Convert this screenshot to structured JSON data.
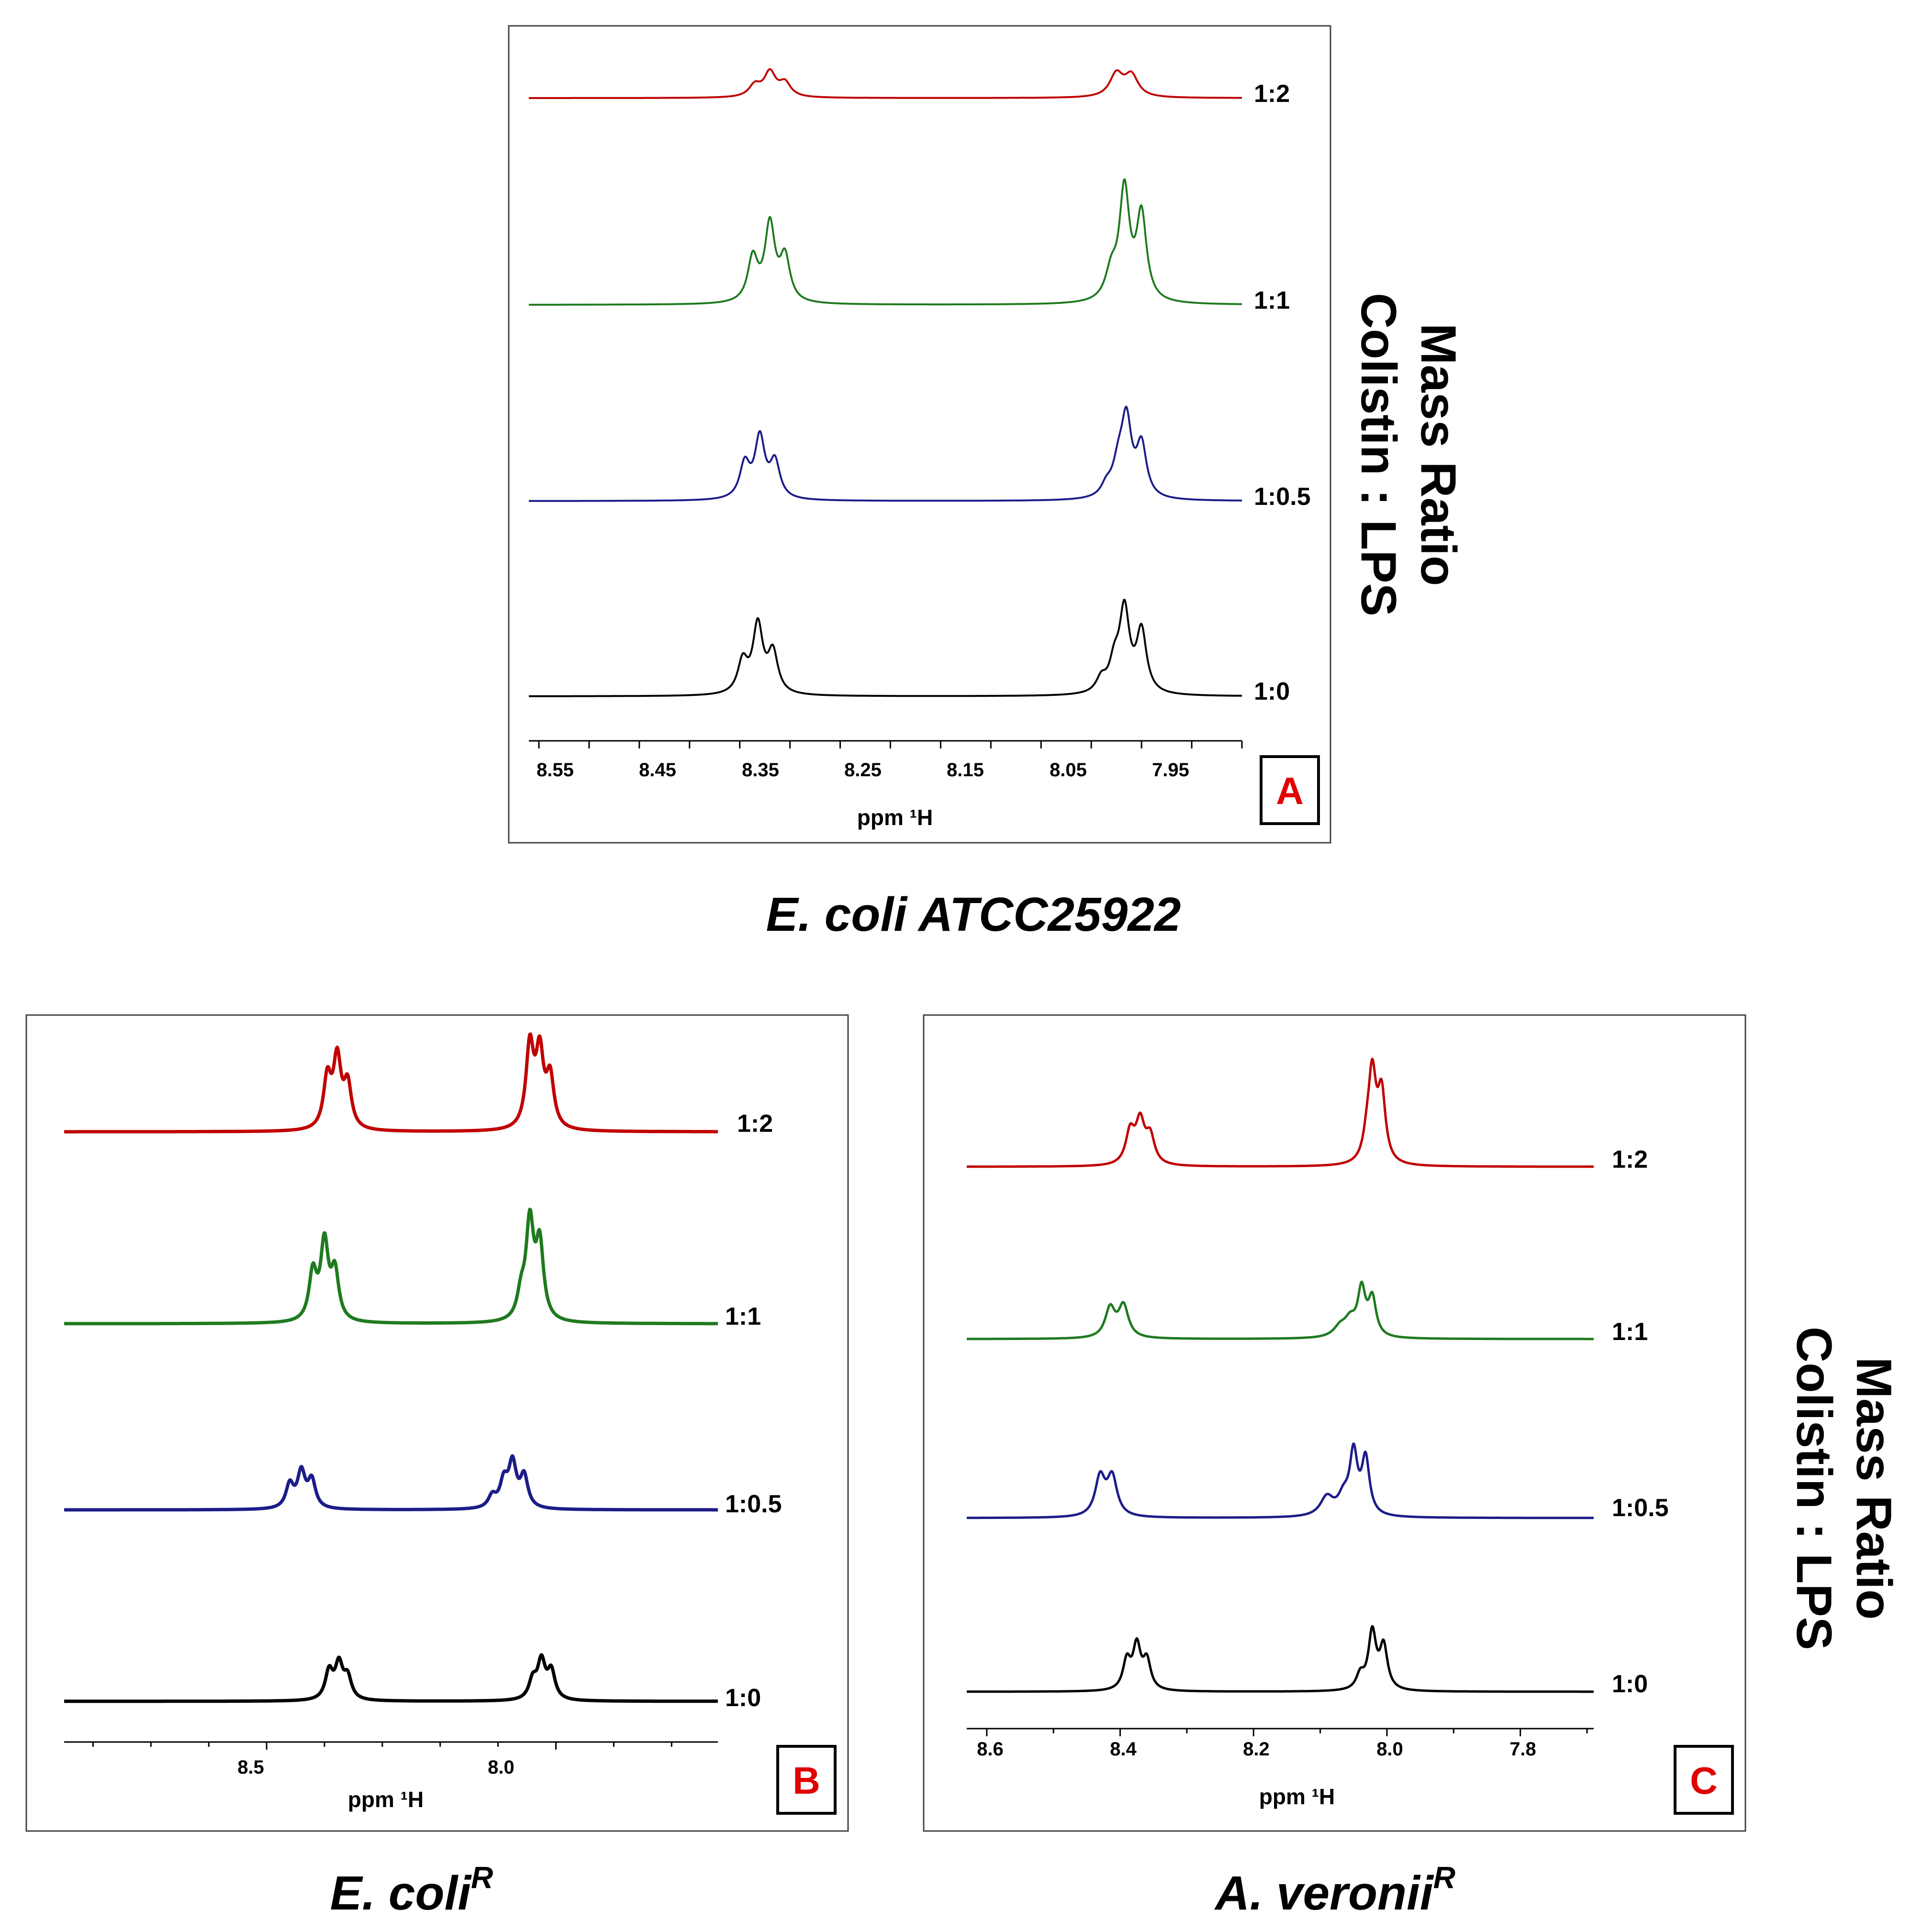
{
  "side_label": {
    "line1": "Mass Ratio",
    "line2": "Colistin : LPS"
  },
  "colors": {
    "1:2": "#c00000",
    "1:1": "#1f7a1f",
    "1:0.5": "#1c1c8a",
    "1:0": "#000000",
    "panel_letter": "#e00000"
  },
  "chart_data": [
    {
      "type": "line",
      "panel": "A",
      "caption": "E. coli ATCC25922",
      "xlabel": "ppm ¹H",
      "xlim": [
        8.61,
        7.9
      ],
      "xticks": [
        "8.55",
        "8.45",
        "8.35",
        "8.25",
        "8.15",
        "8.05",
        "7.95"
      ],
      "series": [
        {
          "name": "1:2",
          "peaks": [
            [
              8.385,
              0.15,
              0.007
            ],
            [
              8.37,
              0.32,
              0.007
            ],
            [
              8.355,
              0.18,
              0.007
            ],
            [
              8.025,
              0.3,
              0.008
            ],
            [
              8.01,
              0.28,
              0.008
            ]
          ]
        },
        {
          "name": "1:1",
          "peaks": [
            [
              8.387,
              0.4,
              0.006
            ],
            [
              8.37,
              0.7,
              0.006
            ],
            [
              8.355,
              0.4,
              0.006
            ],
            [
              8.03,
              0.25,
              0.007
            ],
            [
              8.017,
              1.0,
              0.006
            ],
            [
              8.0,
              0.78,
              0.006
            ]
          ]
        },
        {
          "name": "1:0.5",
          "peaks": [
            [
              8.395,
              0.4,
              0.006
            ],
            [
              8.38,
              0.7,
              0.006
            ],
            [
              8.365,
              0.42,
              0.006
            ],
            [
              8.035,
              0.12,
              0.006
            ],
            [
              8.023,
              0.35,
              0.007
            ],
            [
              8.015,
              0.85,
              0.006
            ],
            [
              8.0,
              0.6,
              0.006
            ]
          ]
        },
        {
          "name": "1:0",
          "peaks": [
            [
              8.397,
              0.35,
              0.006
            ],
            [
              8.382,
              0.75,
              0.006
            ],
            [
              8.367,
              0.45,
              0.006
            ],
            [
              8.04,
              0.15,
              0.006
            ],
            [
              8.027,
              0.3,
              0.006
            ],
            [
              8.017,
              0.9,
              0.006
            ],
            [
              8.0,
              0.68,
              0.006
            ]
          ]
        }
      ]
    },
    {
      "type": "line",
      "panel": "B",
      "caption": "E. coli",
      "caption_sup": "R",
      "xlabel": "ppm ¹H",
      "xlim": [
        8.85,
        7.72
      ],
      "xticks": [
        "8.5",
        "8.0"
      ],
      "series": [
        {
          "name": "1:2",
          "peaks": [
            [
              8.395,
              0.55,
              0.008
            ],
            [
              8.378,
              0.75,
              0.008
            ],
            [
              8.36,
              0.48,
              0.008
            ],
            [
              8.045,
              0.9,
              0.008
            ],
            [
              8.028,
              0.8,
              0.008
            ],
            [
              8.01,
              0.55,
              0.008
            ]
          ]
        },
        {
          "name": "1:1",
          "peaks": [
            [
              8.42,
              0.5,
              0.008
            ],
            [
              8.4,
              0.8,
              0.008
            ],
            [
              8.382,
              0.5,
              0.008
            ],
            [
              8.06,
              0.25,
              0.008
            ],
            [
              8.045,
              1.0,
              0.008
            ],
            [
              8.028,
              0.78,
              0.008
            ]
          ]
        },
        {
          "name": "1:0.5",
          "peaks": [
            [
              8.46,
              0.3,
              0.008
            ],
            [
              8.44,
              0.45,
              0.008
            ],
            [
              8.422,
              0.35,
              0.008
            ],
            [
              8.11,
              0.15,
              0.008
            ],
            [
              8.09,
              0.32,
              0.008
            ],
            [
              8.075,
              0.55,
              0.008
            ],
            [
              8.055,
              0.4,
              0.008
            ]
          ]
        },
        {
          "name": "1:0",
          "peaks": [
            [
              8.392,
              0.45,
              0.008
            ],
            [
              8.375,
              0.55,
              0.008
            ],
            [
              8.36,
              0.35,
              0.008
            ],
            [
              8.04,
              0.3,
              0.008
            ],
            [
              8.025,
              0.6,
              0.008
            ],
            [
              8.008,
              0.45,
              0.008
            ]
          ]
        }
      ]
    },
    {
      "type": "line",
      "panel": "C",
      "caption": "A.  veronii",
      "caption_sup": "R",
      "xlabel": "ppm ¹H",
      "xlim": [
        8.63,
        7.69
      ],
      "xticks": [
        "8.6",
        "8.4",
        "8.2",
        "8.0",
        "7.8"
      ],
      "series": [
        {
          "name": "1:2",
          "peaks": [
            [
              8.385,
              0.35,
              0.008
            ],
            [
              8.37,
              0.45,
              0.008
            ],
            [
              8.355,
              0.3,
              0.008
            ],
            [
              8.03,
              0.2,
              0.007
            ],
            [
              8.022,
              0.95,
              0.007
            ],
            [
              8.008,
              0.75,
              0.007
            ]
          ]
        },
        {
          "name": "1:1",
          "peaks": [
            [
              8.415,
              0.35,
              0.009
            ],
            [
              8.395,
              0.38,
              0.009
            ],
            [
              8.07,
              0.12,
              0.012
            ],
            [
              8.055,
              0.18,
              0.01
            ],
            [
              8.038,
              0.55,
              0.007
            ],
            [
              8.022,
              0.45,
              0.007
            ]
          ]
        },
        {
          "name": "1:0.5",
          "peaks": [
            [
              8.43,
              0.45,
              0.009
            ],
            [
              8.412,
              0.45,
              0.009
            ],
            [
              8.09,
              0.22,
              0.012
            ],
            [
              8.065,
              0.2,
              0.01
            ],
            [
              8.05,
              0.7,
              0.007
            ],
            [
              8.032,
              0.65,
              0.007
            ]
          ]
        },
        {
          "name": "1:0",
          "peaks": [
            [
              8.39,
              0.4,
              0.007
            ],
            [
              8.375,
              0.6,
              0.007
            ],
            [
              8.36,
              0.4,
              0.007
            ],
            [
              8.04,
              0.2,
              0.007
            ],
            [
              8.022,
              0.8,
              0.007
            ],
            [
              8.005,
              0.6,
              0.007
            ]
          ]
        }
      ]
    }
  ]
}
